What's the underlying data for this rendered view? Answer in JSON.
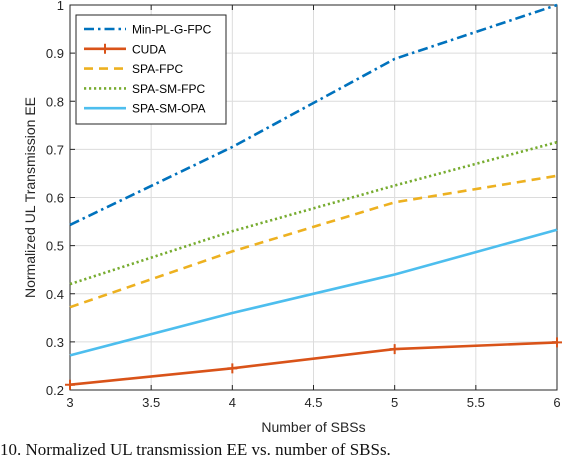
{
  "caption": "10.  Normalized UL transmission EE vs. number of SBSs.",
  "chart_data": {
    "type": "line",
    "title": "",
    "xlabel": "Number of SBSs",
    "ylabel": "Normalized UL Transmission EE",
    "xlim": [
      3,
      6
    ],
    "ylim": [
      0.2,
      1
    ],
    "xticks": [
      "3",
      "3.5",
      "4",
      "4.5",
      "5",
      "5.5",
      "6"
    ],
    "yticks": [
      "0.2",
      "0.3",
      "0.4",
      "0.5",
      "0.6",
      "0.7",
      "0.8",
      "0.9",
      "1"
    ],
    "grid": true,
    "legend_position": "top-left",
    "x": [
      3,
      4,
      5,
      6
    ],
    "series": [
      {
        "name": "Min-PL-G-FPC",
        "values": [
          0.543,
          0.705,
          0.888,
          1.0
        ],
        "color": "#0072BD",
        "dash": "dashdot",
        "marker": "none"
      },
      {
        "name": "CUDA",
        "values": [
          0.211,
          0.245,
          0.285,
          0.299
        ],
        "color": "#D95319",
        "dash": "solid",
        "marker": "plus"
      },
      {
        "name": "SPA-FPC",
        "values": [
          0.372,
          0.488,
          0.59,
          0.645
        ],
        "color": "#EDB120",
        "dash": "dashed",
        "marker": "none"
      },
      {
        "name": "SPA-SM-FPC",
        "values": [
          0.42,
          0.53,
          0.625,
          0.715
        ],
        "color": "#77AC30",
        "dash": "dotted",
        "marker": "none"
      },
      {
        "name": "SPA-SM-OPA",
        "values": [
          0.272,
          0.36,
          0.44,
          0.533
        ],
        "color": "#4DBEEE",
        "dash": "solid",
        "marker": "none"
      }
    ]
  }
}
